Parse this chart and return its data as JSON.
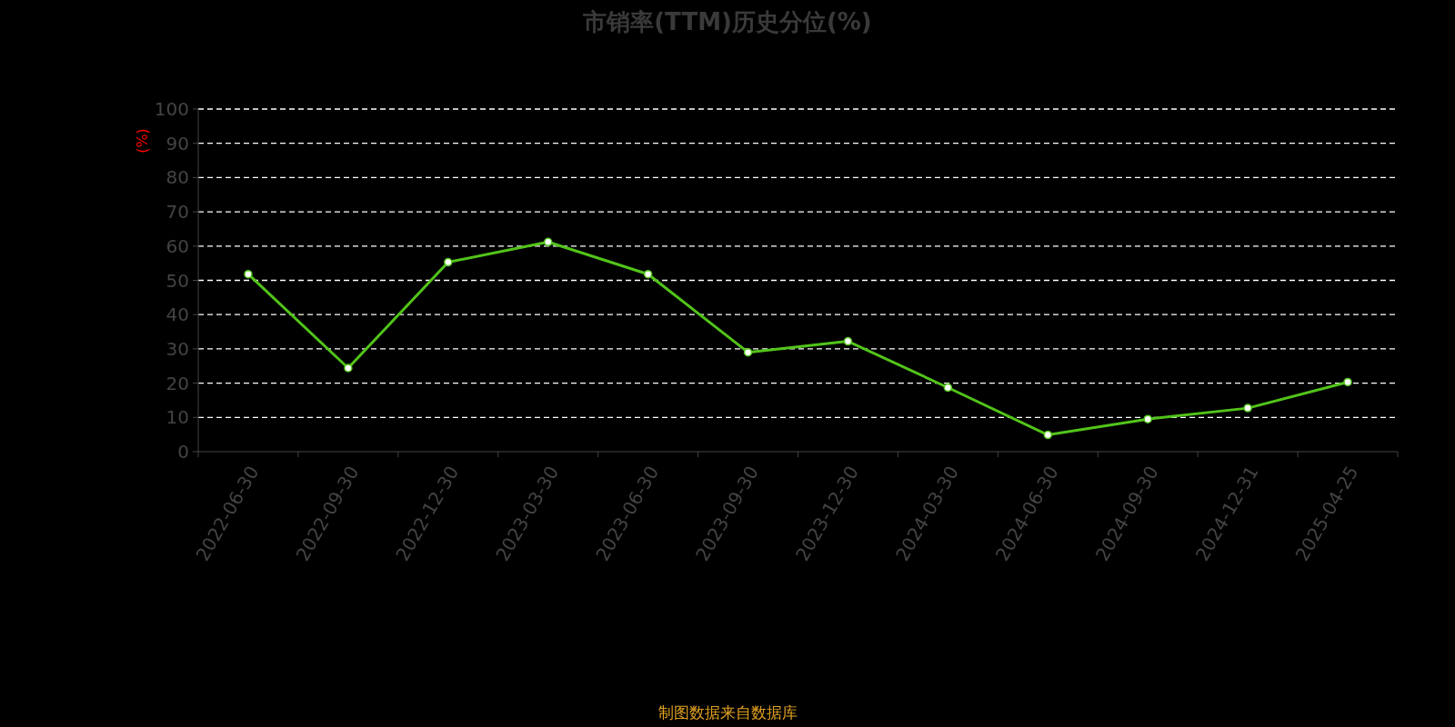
{
  "chart_data": {
    "type": "line",
    "title": "市销率(TTM)历史分位(%)",
    "ylabel": "(%)",
    "categories": [
      "2022-06-30",
      "2022-09-30",
      "2022-12-30",
      "2023-03-30",
      "2023-06-30",
      "2023-09-30",
      "2023-12-30",
      "2024-03-30",
      "2024-06-30",
      "2024-09-30",
      "2024-12-31",
      "2025-04-25"
    ],
    "series": [
      {
        "color": "#52c41a",
        "values": [
          51.8,
          24.4,
          55.3,
          61.2,
          51.8,
          29.0,
          32.2,
          18.7,
          4.9,
          9.5,
          12.7,
          20.3
        ]
      }
    ],
    "ylim": [
      0,
      100
    ],
    "yticks": [
      0,
      10,
      20,
      30,
      40,
      50,
      60,
      70,
      80,
      90,
      100
    ],
    "grid": "y",
    "marker": "circle",
    "line_style": "solid",
    "annotations": [
      "制图数据来自数据库"
    ]
  }
}
